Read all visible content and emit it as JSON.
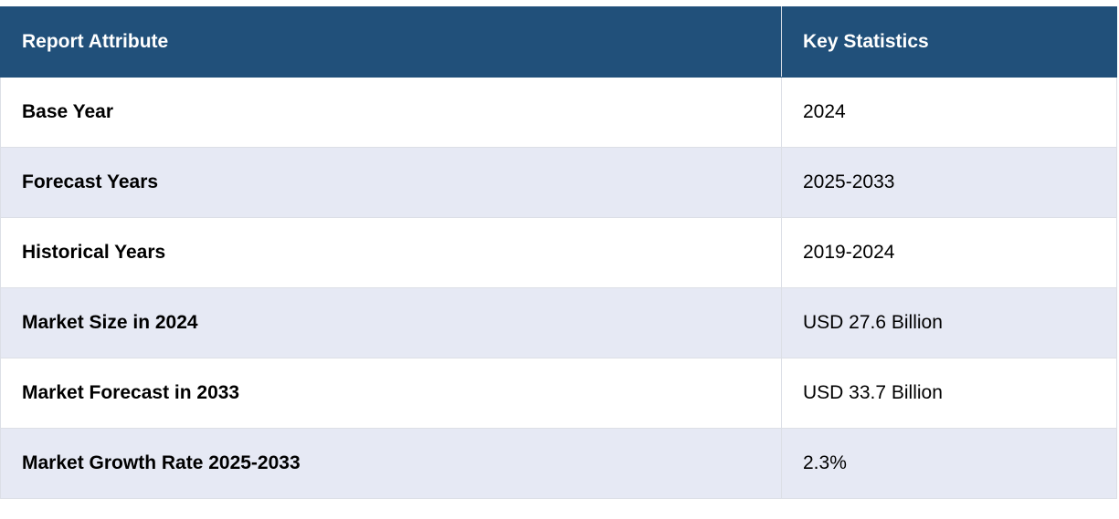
{
  "table": {
    "headers": {
      "attribute": "Report Attribute",
      "statistics": "Key Statistics"
    },
    "rows": [
      {
        "attribute": "Base Year",
        "value": "2024"
      },
      {
        "attribute": "Forecast Years",
        "value": "2025-2033"
      },
      {
        "attribute": "Historical Years",
        "value": "2019-2024"
      },
      {
        "attribute": "Market Size in 2024",
        "value": "USD 27.6 Billion"
      },
      {
        "attribute": "Market Forecast in 2033",
        "value": "USD 33.7 Billion"
      },
      {
        "attribute": "Market Growth Rate 2025-2033",
        "value": "2.3%"
      }
    ]
  },
  "colors": {
    "header_bg": "#21507a",
    "header_text": "#ffffff",
    "row_alt_bg": "#e6e9f4",
    "row_bg": "#ffffff"
  }
}
